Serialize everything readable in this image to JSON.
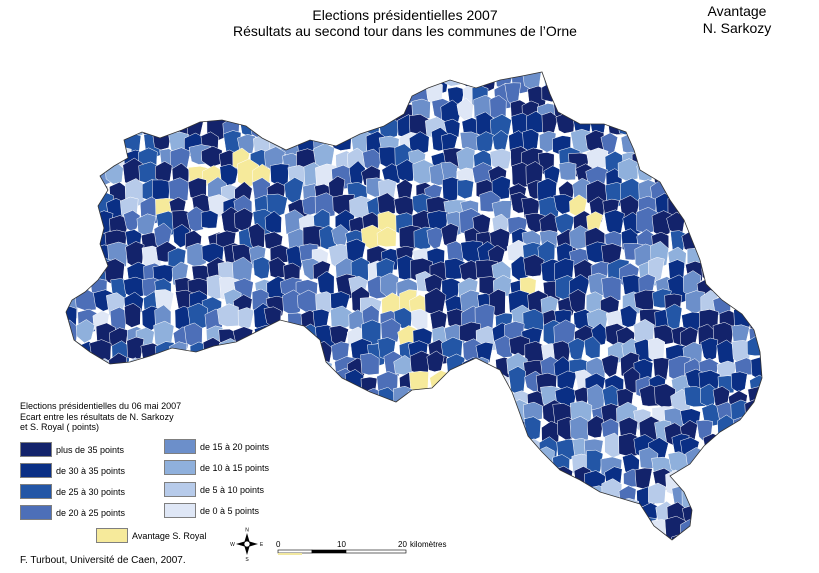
{
  "title": {
    "line1": "Elections présidentielles 2007",
    "line2": "Résultats au second tour dans les communes de l’Orne"
  },
  "corner_label": {
    "line1": "Avantage",
    "line2": "N. Sarkozy"
  },
  "legend": {
    "heading": [
      "Elections présidentielles du 06 mai 2007",
      "Ecart entre les résultats de N. Sarkozy",
      "et S. Royal ( points)"
    ],
    "items": [
      {
        "label": "plus de 35 points",
        "color": "#13236b"
      },
      {
        "label": "de 30 à 35 points",
        "color": "#0a2f85"
      },
      {
        "label": "de 25 à 30 points",
        "color": "#2356a6"
      },
      {
        "label": "de 20 à 25 points",
        "color": "#4d6fb8"
      },
      {
        "label": "de 15 à 20 points",
        "color": "#6c8fca"
      },
      {
        "label": "de 10 à 15 points",
        "color": "#8fb0dc"
      },
      {
        "label": "de 5 à 10 points",
        "color": "#b7cbea"
      },
      {
        "label": "de 0 à 5 points",
        "color": "#dfe7f6"
      }
    ],
    "royal": {
      "label": "Avantage S. Royal",
      "color": "#f6ea9b"
    }
  },
  "compass": {
    "n": "N",
    "s": "S",
    "e": "E",
    "w": "W"
  },
  "scale": {
    "ticks": [
      "0",
      "10",
      "20"
    ],
    "unit": "kilomètres"
  },
  "credit": "F. Turbout, Université de Caen, 2007."
}
